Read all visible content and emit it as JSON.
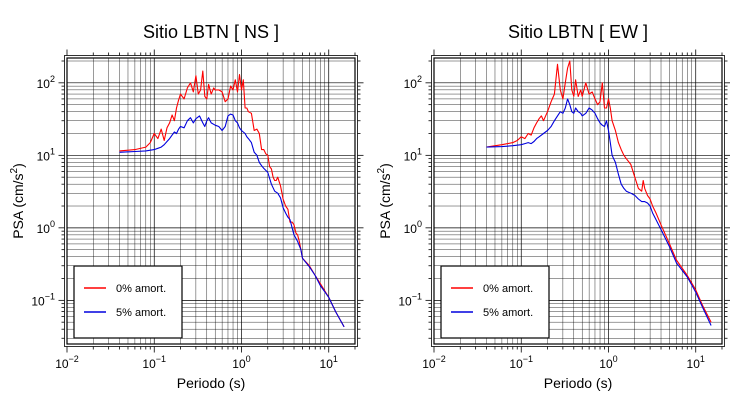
{
  "colors": {
    "undamped": "#ff0000",
    "damped": "#0000dd",
    "grid": "#000000",
    "axis": "#000000"
  },
  "chart_data": [
    {
      "type": "line",
      "title": "Sitio LBTN [ NS ]",
      "xlabel": "Periodo (s)",
      "ylabel": "PSA (cm/s²)",
      "ylabel_main": "PSA (cm/s",
      "ylabel_sup": "2",
      "ylabel_close": ")",
      "xscale": "log",
      "yscale": "log",
      "xlim": [
        0.01,
        20
      ],
      "ylim": [
        0.025,
        220
      ],
      "grid": true,
      "legend_position": "bottom-left",
      "xticks": [
        {
          "value": 0.01,
          "base": "10",
          "exp": "−2"
        },
        {
          "value": 0.1,
          "base": "10",
          "exp": "−1"
        },
        {
          "value": 1,
          "base": "10",
          "exp": "0"
        },
        {
          "value": 10,
          "base": "10",
          "exp": "1"
        }
      ],
      "yticks": [
        {
          "value": 0.1,
          "base": "10",
          "exp": "−1"
        },
        {
          "value": 1,
          "base": "10",
          "exp": "0"
        },
        {
          "value": 10,
          "base": "10",
          "exp": "1"
        },
        {
          "value": 100,
          "base": "10",
          "exp": "2"
        }
      ],
      "series": [
        {
          "name": "0% amort.",
          "x": [
            0.04,
            0.06,
            0.08,
            0.09,
            0.1,
            0.11,
            0.12,
            0.13,
            0.14,
            0.15,
            0.16,
            0.17,
            0.18,
            0.19,
            0.2,
            0.22,
            0.24,
            0.26,
            0.28,
            0.3,
            0.32,
            0.34,
            0.36,
            0.38,
            0.4,
            0.42,
            0.45,
            0.48,
            0.5,
            0.55,
            0.6,
            0.65,
            0.7,
            0.75,
            0.8,
            0.85,
            0.9,
            0.95,
            1.0,
            1.05,
            1.1,
            1.15,
            1.2,
            1.3,
            1.4,
            1.5,
            1.6,
            1.7,
            1.8,
            1.9,
            2.0,
            2.1,
            2.2,
            2.3,
            2.4,
            2.5,
            2.6,
            2.8,
            3.0,
            3.2,
            3.4,
            3.6,
            3.8,
            4.0,
            4.2,
            4.4,
            4.6,
            4.8,
            5.0,
            6,
            7,
            8,
            10,
            12,
            15
          ],
          "y": [
            11.5,
            12,
            13,
            15,
            20,
            17,
            23,
            16,
            24,
            28,
            36,
            30,
            45,
            58,
            70,
            60,
            85,
            100,
            75,
            125,
            70,
            80,
            145,
            65,
            60,
            95,
            70,
            85,
            80,
            80,
            75,
            55,
            60,
            90,
            80,
            110,
            75,
            130,
            80,
            110,
            45,
            45,
            40,
            38,
            22,
            23,
            20,
            12,
            12,
            10.5,
            10,
            7,
            6.5,
            5,
            4.5,
            4.5,
            5,
            3.8,
            2.5,
            2,
            1.8,
            1.2,
            1.2,
            1.1,
            0.85,
            0.8,
            0.65,
            0.5,
            0.38,
            0.3,
            0.22,
            0.17,
            0.11,
            0.07,
            0.043
          ]
        },
        {
          "name": "5% amort.",
          "x": [
            0.04,
            0.06,
            0.08,
            0.1,
            0.11,
            0.12,
            0.13,
            0.14,
            0.15,
            0.16,
            0.17,
            0.18,
            0.19,
            0.2,
            0.22,
            0.24,
            0.26,
            0.28,
            0.3,
            0.33,
            0.36,
            0.38,
            0.4,
            0.42,
            0.45,
            0.5,
            0.55,
            0.6,
            0.65,
            0.7,
            0.75,
            0.8,
            0.85,
            0.9,
            0.95,
            1.0,
            1.05,
            1.1,
            1.15,
            1.2,
            1.3,
            1.4,
            1.5,
            1.6,
            1.7,
            1.8,
            1.9,
            2.0,
            2.2,
            2.4,
            2.6,
            2.8,
            3.0,
            3.2,
            3.4,
            3.6,
            3.8,
            4.0,
            4.4,
            4.8,
            5.0,
            6,
            7,
            8,
            10,
            12,
            15
          ],
          "y": [
            11,
            11.3,
            11.5,
            12,
            12.5,
            13,
            14,
            15.5,
            17,
            19,
            21,
            20,
            23,
            25,
            24,
            30,
            33,
            28,
            32,
            35,
            28,
            25,
            30,
            33,
            28,
            26,
            25,
            22,
            25,
            35,
            37,
            36,
            30,
            28,
            24,
            22,
            21,
            20,
            18,
            17,
            15,
            11,
            10,
            8,
            7.2,
            6.6,
            6.2,
            5.8,
            4,
            3.2,
            3,
            2.6,
            1.9,
            1.6,
            1.4,
            1.3,
            1.0,
            0.8,
            0.65,
            0.5,
            0.38,
            0.29,
            0.22,
            0.16,
            0.11,
            0.07,
            0.043
          ]
        }
      ]
    },
    {
      "type": "line",
      "title": "Sitio LBTN [ EW ]",
      "xlabel": "Periodo (s)",
      "ylabel": "PSA (cm/s²)",
      "ylabel_main": "PSA (cm/s",
      "ylabel_sup": "2",
      "ylabel_close": ")",
      "xscale": "log",
      "yscale": "log",
      "xlim": [
        0.01,
        20
      ],
      "ylim": [
        0.025,
        220
      ],
      "grid": true,
      "legend_position": "bottom-left",
      "xticks": [
        {
          "value": 0.01,
          "base": "10",
          "exp": "−2"
        },
        {
          "value": 0.1,
          "base": "10",
          "exp": "−1"
        },
        {
          "value": 1,
          "base": "10",
          "exp": "0"
        },
        {
          "value": 10,
          "base": "10",
          "exp": "1"
        }
      ],
      "yticks": [
        {
          "value": 0.1,
          "base": "10",
          "exp": "−1"
        },
        {
          "value": 1,
          "base": "10",
          "exp": "0"
        },
        {
          "value": 10,
          "base": "10",
          "exp": "1"
        },
        {
          "value": 100,
          "base": "10",
          "exp": "2"
        }
      ],
      "series": [
        {
          "name": "0% amort.",
          "x": [
            0.04,
            0.06,
            0.08,
            0.09,
            0.1,
            0.11,
            0.12,
            0.13,
            0.14,
            0.15,
            0.16,
            0.17,
            0.18,
            0.2,
            0.22,
            0.24,
            0.26,
            0.28,
            0.3,
            0.32,
            0.34,
            0.36,
            0.38,
            0.4,
            0.42,
            0.45,
            0.48,
            0.5,
            0.55,
            0.6,
            0.65,
            0.7,
            0.75,
            0.8,
            0.85,
            0.9,
            0.95,
            1.0,
            1.05,
            1.1,
            1.2,
            1.3,
            1.4,
            1.5,
            1.6,
            1.8,
            2.0,
            2.2,
            2.4,
            2.5,
            2.6,
            2.8,
            3.0,
            3.2,
            3.5,
            4.0,
            5,
            6,
            8,
            10,
            12,
            15
          ],
          "y": [
            13,
            14,
            15,
            16,
            18,
            17,
            20,
            19,
            24,
            28,
            32,
            35,
            30,
            40,
            55,
            70,
            180,
            80,
            60,
            100,
            160,
            200,
            80,
            65,
            110,
            65,
            80,
            65,
            100,
            70,
            75,
            60,
            50,
            55,
            100,
            45,
            45,
            60,
            45,
            30,
            22,
            15,
            12,
            10,
            9,
            7.5,
            5,
            3.5,
            3.2,
            4.5,
            3.5,
            2.8,
            2.5,
            2,
            1.6,
            1.1,
            0.6,
            0.36,
            0.22,
            0.14,
            0.085,
            0.05
          ]
        },
        {
          "name": "5% amort.",
          "x": [
            0.04,
            0.06,
            0.08,
            0.1,
            0.11,
            0.12,
            0.13,
            0.14,
            0.15,
            0.16,
            0.18,
            0.2,
            0.22,
            0.24,
            0.26,
            0.28,
            0.3,
            0.32,
            0.34,
            0.36,
            0.38,
            0.4,
            0.42,
            0.45,
            0.48,
            0.5,
            0.55,
            0.6,
            0.65,
            0.7,
            0.75,
            0.8,
            0.85,
            0.9,
            0.95,
            1.0,
            1.05,
            1.1,
            1.2,
            1.3,
            1.4,
            1.5,
            1.6,
            1.8,
            2.0,
            2.2,
            2.4,
            2.6,
            2.8,
            3.0,
            3.2,
            3.5,
            4.0,
            5,
            6,
            8,
            10,
            12,
            15
          ],
          "y": [
            13,
            13.2,
            13.6,
            14,
            14.5,
            15,
            14.5,
            15.5,
            17,
            18,
            20,
            22,
            25,
            30,
            35,
            40,
            38,
            45,
            60,
            50,
            40,
            38,
            45,
            40,
            38,
            35,
            38,
            45,
            42,
            38,
            32,
            28,
            26,
            25,
            30,
            22,
            15,
            10,
            8,
            5.5,
            4,
            3.5,
            3.2,
            3,
            2.8,
            2.5,
            2.3,
            2.3,
            2.2,
            2.0,
            1.6,
            1.3,
            0.95,
            0.55,
            0.33,
            0.21,
            0.13,
            0.08,
            0.045
          ]
        }
      ]
    }
  ]
}
